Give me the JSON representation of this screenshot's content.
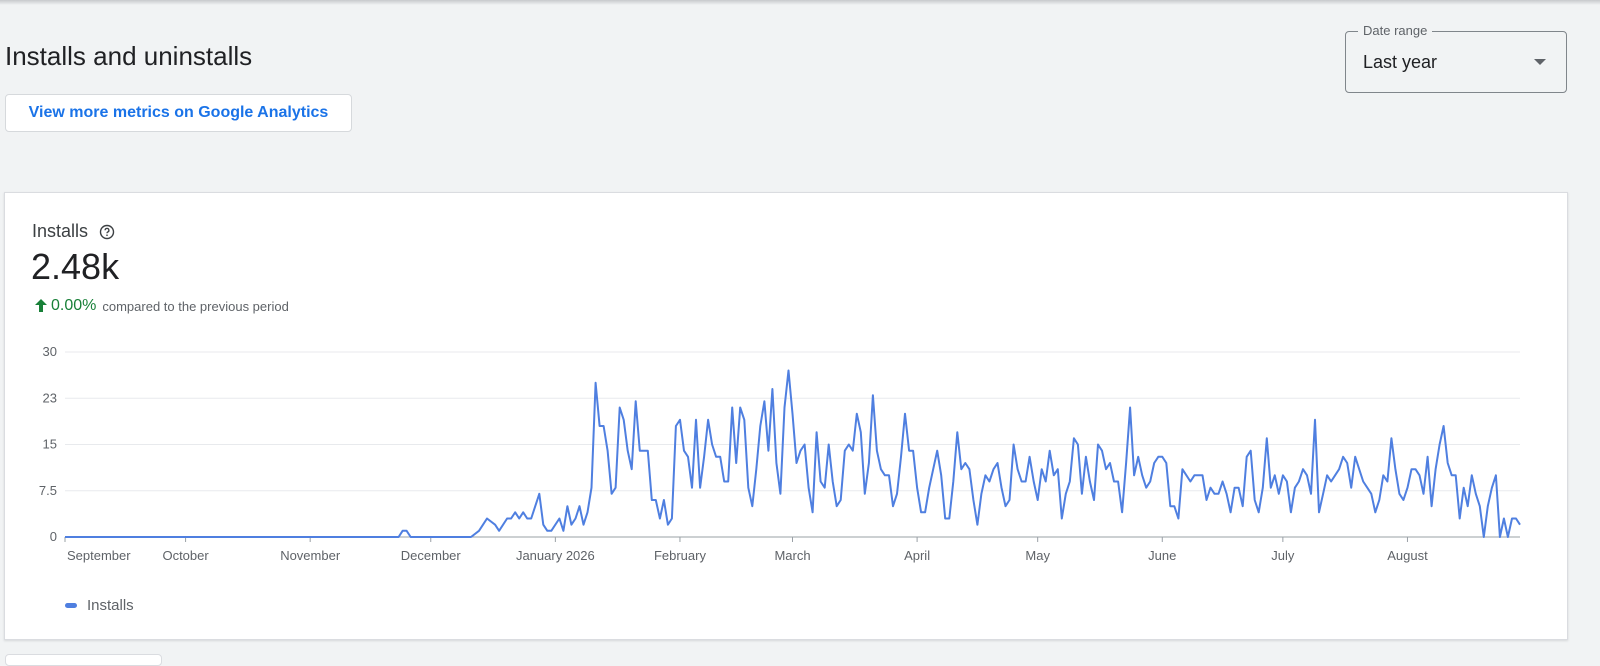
{
  "page": {
    "title": "Installs and uninstalls",
    "ga_button_label": "View more metrics on Google Analytics"
  },
  "date_range": {
    "label": "Date range",
    "value": "Last year",
    "icon": "dropdown-arrow-icon"
  },
  "card": {
    "title": "Installs",
    "help_icon": "help-circle-icon",
    "value": "2.48k",
    "change_icon": "arrow-up-icon",
    "change_pct": "0.00%",
    "change_text": "compared to the previous period",
    "legend_label": "Installs"
  },
  "colors": {
    "series": "#4f7fe0",
    "accent": "#1a73e8",
    "positive": "#188038"
  },
  "chart_data": {
    "type": "line",
    "y_ticks": [
      "0",
      "7.5",
      "15",
      "23",
      "30"
    ],
    "ylim": [
      0,
      30
    ],
    "grid": true,
    "legend_position": "bottom-left",
    "x_tick_labels": [
      "September",
      "October",
      "November",
      "December",
      "January 2026",
      "February",
      "March",
      "April",
      "May",
      "June",
      "July",
      "August"
    ],
    "x_tick_days": [
      0,
      30,
      61,
      91,
      122,
      153,
      181,
      212,
      242,
      273,
      303,
      334
    ],
    "x_range_days": [
      0,
      356
    ],
    "series": [
      {
        "name": "Installs",
        "points": [
          [
            0,
            0
          ],
          [
            83,
            0
          ],
          [
            84,
            1
          ],
          [
            85,
            1
          ],
          [
            86,
            0
          ],
          [
            101,
            0
          ],
          [
            103,
            1
          ],
          [
            104,
            2
          ],
          [
            105,
            3
          ],
          [
            107,
            2
          ],
          [
            108,
            1
          ],
          [
            110,
            3
          ],
          [
            111,
            3
          ],
          [
            112,
            4
          ],
          [
            113,
            3
          ],
          [
            114,
            4
          ],
          [
            115,
            3
          ],
          [
            116,
            3
          ],
          [
            118,
            7
          ],
          [
            119,
            2
          ],
          [
            120,
            1
          ],
          [
            121,
            1
          ],
          [
            123,
            3
          ],
          [
            124,
            1
          ],
          [
            125,
            5
          ],
          [
            126,
            2
          ],
          [
            127,
            3
          ],
          [
            128,
            5
          ],
          [
            129,
            2
          ],
          [
            130,
            4
          ],
          [
            131,
            8
          ],
          [
            132,
            25
          ],
          [
            133,
            18
          ],
          [
            134,
            18
          ],
          [
            135,
            14
          ],
          [
            136,
            7
          ],
          [
            137,
            8
          ],
          [
            138,
            21
          ],
          [
            139,
            19
          ],
          [
            140,
            14
          ],
          [
            141,
            11
          ],
          [
            142,
            22
          ],
          [
            143,
            14
          ],
          [
            144,
            14
          ],
          [
            145,
            14
          ],
          [
            146,
            6
          ],
          [
            147,
            6
          ],
          [
            148,
            3
          ],
          [
            149,
            6
          ],
          [
            150,
            2
          ],
          [
            151,
            3
          ],
          [
            152,
            18
          ],
          [
            153,
            19
          ],
          [
            154,
            14
          ],
          [
            155,
            13
          ],
          [
            156,
            8
          ],
          [
            157,
            19
          ],
          [
            158,
            8
          ],
          [
            159,
            13
          ],
          [
            160,
            19
          ],
          [
            161,
            15
          ],
          [
            162,
            13
          ],
          [
            163,
            13
          ],
          [
            164,
            9
          ],
          [
            165,
            9
          ],
          [
            166,
            21
          ],
          [
            167,
            12
          ],
          [
            168,
            21
          ],
          [
            169,
            19
          ],
          [
            170,
            8
          ],
          [
            171,
            5
          ],
          [
            172,
            11
          ],
          [
            173,
            18
          ],
          [
            174,
            22
          ],
          [
            175,
            14
          ],
          [
            176,
            24
          ],
          [
            177,
            12
          ],
          [
            178,
            7
          ],
          [
            179,
            21
          ],
          [
            180,
            27
          ],
          [
            181,
            20
          ],
          [
            182,
            12
          ],
          [
            183,
            14
          ],
          [
            184,
            15
          ],
          [
            185,
            8
          ],
          [
            186,
            4
          ],
          [
            187,
            17
          ],
          [
            188,
            9
          ],
          [
            189,
            8
          ],
          [
            190,
            15
          ],
          [
            191,
            9
          ],
          [
            192,
            5
          ],
          [
            193,
            6
          ],
          [
            194,
            14
          ],
          [
            195,
            15
          ],
          [
            196,
            14
          ],
          [
            197,
            20
          ],
          [
            198,
            17
          ],
          [
            199,
            7
          ],
          [
            200,
            12
          ],
          [
            201,
            23
          ],
          [
            202,
            14
          ],
          [
            203,
            11
          ],
          [
            204,
            10
          ],
          [
            205,
            10
          ],
          [
            206,
            5
          ],
          [
            207,
            7
          ],
          [
            208,
            13
          ],
          [
            209,
            20
          ],
          [
            210,
            14
          ],
          [
            211,
            14
          ],
          [
            212,
            8
          ],
          [
            213,
            4
          ],
          [
            214,
            4
          ],
          [
            215,
            8
          ],
          [
            216,
            11
          ],
          [
            217,
            14
          ],
          [
            218,
            10
          ],
          [
            219,
            3
          ],
          [
            220,
            3
          ],
          [
            221,
            9
          ],
          [
            222,
            17
          ],
          [
            223,
            11
          ],
          [
            224,
            12
          ],
          [
            225,
            11
          ],
          [
            226,
            6
          ],
          [
            227,
            2
          ],
          [
            228,
            7
          ],
          [
            229,
            10
          ],
          [
            230,
            9
          ],
          [
            231,
            11
          ],
          [
            232,
            12
          ],
          [
            233,
            8
          ],
          [
            234,
            5
          ],
          [
            235,
            6
          ],
          [
            236,
            15
          ],
          [
            237,
            11
          ],
          [
            238,
            9
          ],
          [
            239,
            9
          ],
          [
            240,
            13
          ],
          [
            241,
            9
          ],
          [
            242,
            6
          ],
          [
            243,
            11
          ],
          [
            244,
            9
          ],
          [
            245,
            14
          ],
          [
            246,
            10
          ],
          [
            247,
            11
          ],
          [
            248,
            3
          ],
          [
            249,
            7
          ],
          [
            250,
            9
          ],
          [
            251,
            16
          ],
          [
            252,
            15
          ],
          [
            253,
            7
          ],
          [
            254,
            13
          ],
          [
            255,
            9
          ],
          [
            256,
            6
          ],
          [
            257,
            15
          ],
          [
            258,
            14
          ],
          [
            259,
            11
          ],
          [
            260,
            12
          ],
          [
            261,
            9
          ],
          [
            262,
            9
          ],
          [
            263,
            4
          ],
          [
            264,
            12
          ],
          [
            265,
            21
          ],
          [
            266,
            10
          ],
          [
            267,
            13
          ],
          [
            268,
            10
          ],
          [
            269,
            8
          ],
          [
            270,
            9
          ],
          [
            271,
            12
          ],
          [
            272,
            13
          ],
          [
            273,
            13
          ],
          [
            274,
            12
          ],
          [
            275,
            5
          ],
          [
            276,
            5
          ],
          [
            277,
            3
          ],
          [
            278,
            11
          ],
          [
            279,
            10
          ],
          [
            280,
            9
          ],
          [
            281,
            10
          ],
          [
            282,
            10
          ],
          [
            283,
            10
          ],
          [
            284,
            6
          ],
          [
            285,
            8
          ],
          [
            286,
            7
          ],
          [
            287,
            7
          ],
          [
            288,
            9
          ],
          [
            289,
            7
          ],
          [
            290,
            4
          ],
          [
            291,
            8
          ],
          [
            292,
            8
          ],
          [
            293,
            5
          ],
          [
            294,
            13
          ],
          [
            295,
            14
          ],
          [
            296,
            6
          ],
          [
            297,
            4
          ],
          [
            298,
            8
          ],
          [
            299,
            16
          ],
          [
            300,
            8
          ],
          [
            301,
            10
          ],
          [
            302,
            7
          ],
          [
            303,
            10
          ],
          [
            304,
            9
          ],
          [
            305,
            4
          ],
          [
            306,
            8
          ],
          [
            307,
            9
          ],
          [
            308,
            11
          ],
          [
            309,
            10
          ],
          [
            310,
            7
          ],
          [
            311,
            19
          ],
          [
            312,
            4
          ],
          [
            313,
            7
          ],
          [
            314,
            10
          ],
          [
            315,
            9
          ],
          [
            316,
            10
          ],
          [
            317,
            11
          ],
          [
            318,
            13
          ],
          [
            319,
            12
          ],
          [
            320,
            8
          ],
          [
            321,
            13
          ],
          [
            322,
            11
          ],
          [
            323,
            9
          ],
          [
            324,
            8
          ],
          [
            325,
            7
          ],
          [
            326,
            4
          ],
          [
            327,
            6
          ],
          [
            328,
            10
          ],
          [
            329,
            9
          ],
          [
            330,
            16
          ],
          [
            331,
            11
          ],
          [
            332,
            7
          ],
          [
            333,
            6
          ],
          [
            334,
            8
          ],
          [
            335,
            11
          ],
          [
            336,
            11
          ],
          [
            337,
            10
          ],
          [
            338,
            7
          ],
          [
            339,
            13
          ],
          [
            340,
            5
          ],
          [
            341,
            11
          ],
          [
            342,
            15
          ],
          [
            343,
            18
          ],
          [
            344,
            12
          ],
          [
            345,
            10
          ],
          [
            346,
            10
          ],
          [
            347,
            3
          ],
          [
            348,
            8
          ],
          [
            349,
            5
          ],
          [
            350,
            10
          ],
          [
            351,
            7
          ],
          [
            352,
            5
          ],
          [
            353,
            0
          ],
          [
            354,
            5
          ],
          [
            355,
            8
          ],
          [
            356,
            10
          ],
          [
            357,
            0
          ],
          [
            358,
            3
          ],
          [
            359,
            0
          ],
          [
            360,
            3
          ],
          [
            361,
            3
          ],
          [
            362,
            2
          ]
        ]
      }
    ]
  }
}
